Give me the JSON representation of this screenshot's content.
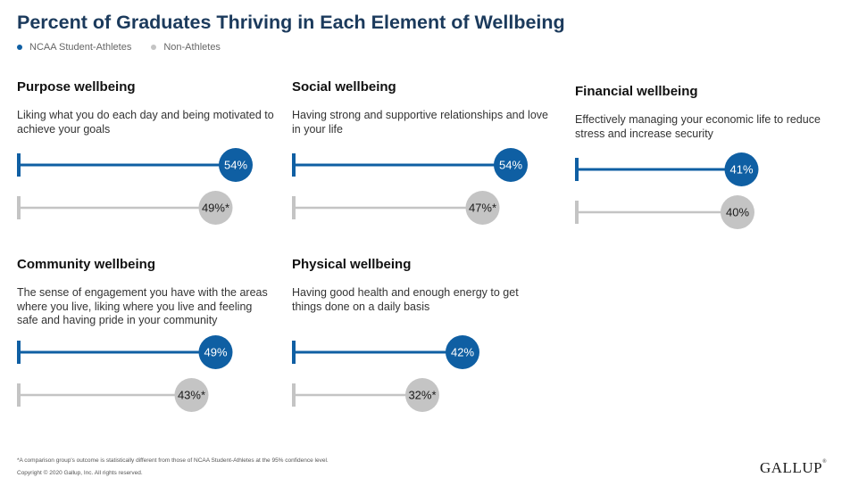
{
  "title": "Percent of Graduates Thriving in Each Element of Wellbeing",
  "legend": [
    {
      "label": "NCAA Student-Athletes",
      "color": "#0f5fa3"
    },
    {
      "label": "Non-Athletes",
      "color": "#c4c4c4"
    }
  ],
  "footnote": "*A comparison group's outcome is statistically different from those of NCAA Student-Athletes at the 95% confidence level.",
  "copyright": "Copyright © 2020 Gallup, Inc. All rights reserved.",
  "logo": {
    "text": "GALLUP",
    "mark": "®"
  },
  "chart_data": {
    "type": "dot-bar",
    "series": [
      {
        "name": "NCAA Student-Athletes",
        "color": "#0f5fa3"
      },
      {
        "name": "Non-Athletes",
        "color": "#c4c4c4"
      }
    ],
    "panels": [
      {
        "key": "purpose",
        "title": "Purpose wellbeing",
        "description": "Liking what you do each day and being motivated to achieve your goals",
        "values": [
          54,
          49
        ],
        "labels": [
          "54%",
          "49%*"
        ]
      },
      {
        "key": "social",
        "title": "Social wellbeing",
        "description": "Having strong and supportive relationships and love in your life",
        "values": [
          54,
          47
        ],
        "labels": [
          "54%",
          "47%*"
        ]
      },
      {
        "key": "financial",
        "title": "Financial wellbeing",
        "description": "Effectively managing your economic life to reduce stress and increase security",
        "values": [
          41,
          40
        ],
        "labels": [
          "41%",
          "40%"
        ]
      },
      {
        "key": "community",
        "title": "Community wellbeing",
        "description": "The sense of engagement you have with the areas where you live, liking where you live and feeling safe and having pride in your community",
        "values": [
          49,
          43
        ],
        "labels": [
          "49%",
          "43%*"
        ]
      },
      {
        "key": "physical",
        "title": "Physical wellbeing",
        "description": "Having good health and enough energy to get things done on a daily basis",
        "values": [
          42,
          32
        ],
        "labels": [
          "42%",
          "32%*"
        ]
      }
    ]
  }
}
